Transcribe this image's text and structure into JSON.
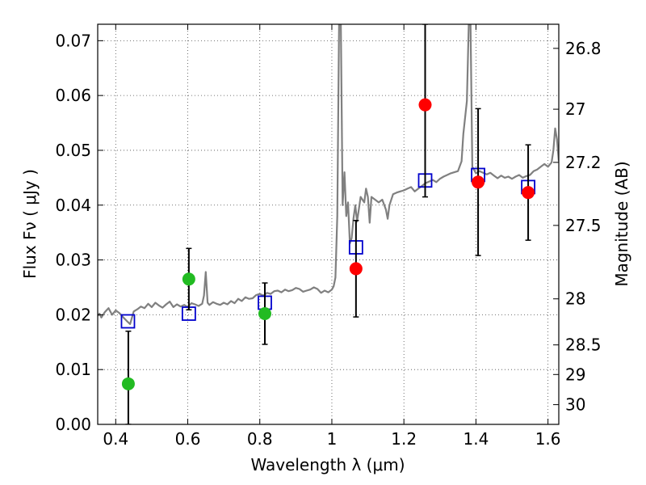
{
  "chart_data": {
    "type": "scatter",
    "xlabel": "Wavelength  λ (μm)",
    "ylabel": "Flux  Fν  ( μJy )",
    "ylabel_right": "Magnitude (AB)",
    "xlim": [
      0.35,
      1.63
    ],
    "ylim": [
      0.0,
      0.073
    ],
    "x_ticks": [
      0.4,
      0.6,
      0.8,
      1.0,
      1.2,
      1.4,
      1.6
    ],
    "x_tick_labels": [
      "0.4",
      "0.6",
      "0.8",
      "1",
      "1.2",
      "1.4",
      "1.6"
    ],
    "y_ticks": [
      0.0,
      0.01,
      0.02,
      0.03,
      0.04,
      0.05,
      0.06,
      0.07
    ],
    "y_tick_labels": [
      "0.00",
      "0.01",
      "0.02",
      "0.03",
      "0.04",
      "0.05",
      "0.06",
      "0.07"
    ],
    "right_ticks": [
      {
        "label": "26.8",
        "flux": 0.0686
      },
      {
        "label": "27",
        "flux": 0.0575
      },
      {
        "label": "27.2",
        "flux": 0.0478
      },
      {
        "label": "27.5",
        "flux": 0.0363
      },
      {
        "label": "28",
        "flux": 0.0229
      },
      {
        "label": "28.5",
        "flux": 0.0145
      },
      {
        "label": "29",
        "flux": 0.0091
      },
      {
        "label": "30",
        "flux": 0.0036
      }
    ],
    "grid": true,
    "series": [
      {
        "marker": "line",
        "color": "#808080",
        "points": [
          [
            0.35,
            0.0198
          ],
          [
            0.355,
            0.0202
          ],
          [
            0.36,
            0.0195
          ],
          [
            0.37,
            0.0205
          ],
          [
            0.38,
            0.0212
          ],
          [
            0.39,
            0.02
          ],
          [
            0.4,
            0.0208
          ],
          [
            0.41,
            0.0203
          ],
          [
            0.42,
            0.0196
          ],
          [
            0.43,
            0.0189
          ],
          [
            0.44,
            0.0183
          ],
          [
            0.45,
            0.0206
          ],
          [
            0.46,
            0.021
          ],
          [
            0.47,
            0.0215
          ],
          [
            0.48,
            0.0212
          ],
          [
            0.49,
            0.022
          ],
          [
            0.5,
            0.0214
          ],
          [
            0.51,
            0.0222
          ],
          [
            0.52,
            0.0217
          ],
          [
            0.53,
            0.0213
          ],
          [
            0.54,
            0.0219
          ],
          [
            0.55,
            0.0224
          ],
          [
            0.56,
            0.0214
          ],
          [
            0.57,
            0.0219
          ],
          [
            0.58,
            0.0215
          ],
          [
            0.59,
            0.0218
          ],
          [
            0.6,
            0.0214
          ],
          [
            0.61,
            0.0221
          ],
          [
            0.62,
            0.0219
          ],
          [
            0.63,
            0.0216
          ],
          [
            0.64,
            0.022
          ],
          [
            0.645,
            0.0235
          ],
          [
            0.65,
            0.0278
          ],
          [
            0.655,
            0.0222
          ],
          [
            0.66,
            0.0218
          ],
          [
            0.67,
            0.0223
          ],
          [
            0.68,
            0.022
          ],
          [
            0.69,
            0.0218
          ],
          [
            0.7,
            0.0222
          ],
          [
            0.71,
            0.0219
          ],
          [
            0.72,
            0.0225
          ],
          [
            0.73,
            0.0221
          ],
          [
            0.74,
            0.0229
          ],
          [
            0.75,
            0.0225
          ],
          [
            0.76,
            0.0232
          ],
          [
            0.77,
            0.0229
          ],
          [
            0.78,
            0.023
          ],
          [
            0.79,
            0.0236
          ],
          [
            0.8,
            0.0238
          ],
          [
            0.81,
            0.0235
          ],
          [
            0.82,
            0.024
          ],
          [
            0.83,
            0.0238
          ],
          [
            0.84,
            0.0243
          ],
          [
            0.85,
            0.0244
          ],
          [
            0.86,
            0.0241
          ],
          [
            0.87,
            0.0246
          ],
          [
            0.88,
            0.0243
          ],
          [
            0.89,
            0.0245
          ],
          [
            0.9,
            0.0249
          ],
          [
            0.91,
            0.0247
          ],
          [
            0.92,
            0.0242
          ],
          [
            0.93,
            0.0244
          ],
          [
            0.94,
            0.0246
          ],
          [
            0.95,
            0.025
          ],
          [
            0.96,
            0.0247
          ],
          [
            0.97,
            0.024
          ],
          [
            0.98,
            0.0244
          ],
          [
            0.99,
            0.0241
          ],
          [
            1.0,
            0.0246
          ],
          [
            1.005,
            0.0252
          ],
          [
            1.01,
            0.0268
          ],
          [
            1.015,
            0.038
          ],
          [
            1.02,
            0.073
          ],
          [
            1.025,
            0.073
          ],
          [
            1.03,
            0.04
          ],
          [
            1.035,
            0.046
          ],
          [
            1.04,
            0.038
          ],
          [
            1.045,
            0.0405
          ],
          [
            1.05,
            0.033
          ],
          [
            1.055,
            0.034
          ],
          [
            1.06,
            0.0375
          ],
          [
            1.065,
            0.04
          ],
          [
            1.07,
            0.037
          ],
          [
            1.08,
            0.0415
          ],
          [
            1.09,
            0.0405
          ],
          [
            1.095,
            0.043
          ],
          [
            1.1,
            0.0415
          ],
          [
            1.105,
            0.0368
          ],
          [
            1.11,
            0.0415
          ],
          [
            1.12,
            0.041
          ],
          [
            1.13,
            0.0405
          ],
          [
            1.14,
            0.041
          ],
          [
            1.15,
            0.0392
          ],
          [
            1.155,
            0.0375
          ],
          [
            1.16,
            0.04
          ],
          [
            1.17,
            0.042
          ],
          [
            1.18,
            0.0423
          ],
          [
            1.19,
            0.0425
          ],
          [
            1.2,
            0.0427
          ],
          [
            1.21,
            0.043
          ],
          [
            1.22,
            0.0433
          ],
          [
            1.23,
            0.0425
          ],
          [
            1.24,
            0.043
          ],
          [
            1.25,
            0.0435
          ],
          [
            1.26,
            0.044
          ],
          [
            1.27,
            0.0443
          ],
          [
            1.28,
            0.0446
          ],
          [
            1.29,
            0.0442
          ],
          [
            1.3,
            0.0448
          ],
          [
            1.31,
            0.0452
          ],
          [
            1.32,
            0.0455
          ],
          [
            1.33,
            0.0458
          ],
          [
            1.34,
            0.046
          ],
          [
            1.35,
            0.0462
          ],
          [
            1.36,
            0.048
          ],
          [
            1.365,
            0.053
          ],
          [
            1.37,
            0.056
          ],
          [
            1.375,
            0.059
          ],
          [
            1.38,
            0.073
          ],
          [
            1.385,
            0.073
          ],
          [
            1.39,
            0.047
          ],
          [
            1.4,
            0.0458
          ],
          [
            1.41,
            0.0462
          ],
          [
            1.42,
            0.0459
          ],
          [
            1.43,
            0.0456
          ],
          [
            1.44,
            0.0459
          ],
          [
            1.45,
            0.0454
          ],
          [
            1.46,
            0.0449
          ],
          [
            1.47,
            0.0454
          ],
          [
            1.48,
            0.045
          ],
          [
            1.49,
            0.0452
          ],
          [
            1.5,
            0.0448
          ],
          [
            1.51,
            0.0452
          ],
          [
            1.52,
            0.0455
          ],
          [
            1.53,
            0.045
          ],
          [
            1.54,
            0.0453
          ],
          [
            1.55,
            0.0455
          ],
          [
            1.56,
            0.0462
          ],
          [
            1.57,
            0.0465
          ],
          [
            1.58,
            0.047
          ],
          [
            1.59,
            0.0475
          ],
          [
            1.6,
            0.047
          ],
          [
            1.61,
            0.0478
          ],
          [
            1.615,
            0.05
          ],
          [
            1.62,
            0.054
          ],
          [
            1.625,
            0.052
          ],
          [
            1.63,
            0.048
          ]
        ]
      },
      {
        "marker": "open-square",
        "color": "#0000cc",
        "points": [
          [
            0.434,
            0.0188
          ],
          [
            0.603,
            0.0202
          ],
          [
            0.814,
            0.0222
          ],
          [
            1.067,
            0.0323
          ],
          [
            1.259,
            0.0445
          ],
          [
            1.406,
            0.0455
          ],
          [
            1.545,
            0.0433
          ]
        ]
      },
      {
        "marker": "filled-circle",
        "color": "#22bb22",
        "points": [
          {
            "x": 0.435,
            "y": 0.0074,
            "err_lo": 0.0074,
            "err_hi": 0.0096
          },
          {
            "x": 0.603,
            "y": 0.0265,
            "err_lo": 0.0056,
            "err_hi": 0.0056
          },
          {
            "x": 0.814,
            "y": 0.0202,
            "err_lo": 0.0056,
            "err_hi": 0.0056
          }
        ]
      },
      {
        "marker": "filled-circle",
        "color": "#ff0000",
        "points": [
          {
            "x": 1.067,
            "y": 0.0284,
            "err_lo": 0.0088,
            "err_hi": 0.0088
          },
          {
            "x": 1.259,
            "y": 0.0583,
            "err_lo": 0.0168,
            "err_hi": 0.0147
          },
          {
            "x": 1.406,
            "y": 0.0442,
            "err_lo": 0.0134,
            "err_hi": 0.0134
          },
          {
            "x": 1.545,
            "y": 0.0423,
            "err_lo": 0.0087,
            "err_hi": 0.0087
          }
        ]
      }
    ]
  }
}
